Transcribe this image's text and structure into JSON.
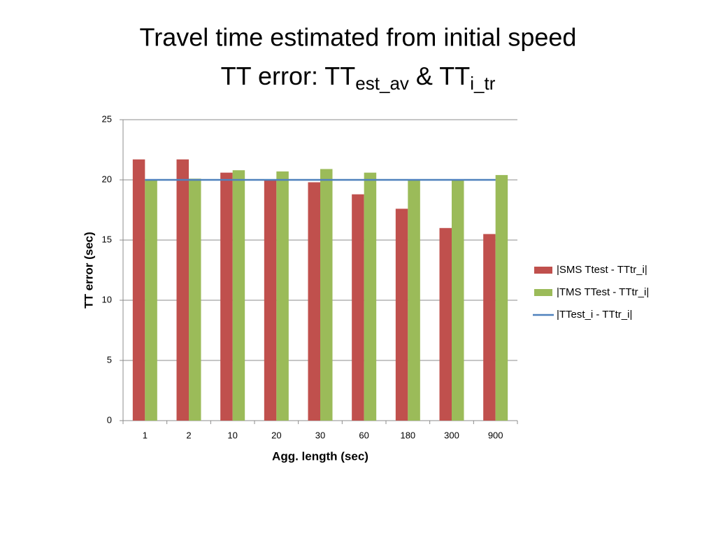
{
  "chart_data": {
    "type": "bar",
    "title": {
      "line1": "Travel time estimated from initial speed",
      "line2": [
        "TT error: TT",
        "est_av",
        " & TT",
        "i_tr"
      ]
    },
    "x_label": "Agg. length (sec)",
    "y_label": "TT error (sec)",
    "categories": [
      "1",
      "2",
      "10",
      "20",
      "30",
      "60",
      "180",
      "300",
      "900"
    ],
    "series": [
      {
        "name": "|SMS Ttest - TTtr_i|",
        "type": "bar",
        "color": "#c0504d",
        "values": [
          21.7,
          21.7,
          20.6,
          20.0,
          19.8,
          18.8,
          17.6,
          16.0,
          15.5
        ]
      },
      {
        "name": "|TMS TTest - TTtr_i|",
        "type": "bar",
        "color": "#9bbb59",
        "values": [
          20.0,
          20.1,
          20.8,
          20.7,
          20.9,
          20.6,
          20.0,
          20.0,
          20.4
        ]
      },
      {
        "name": "|TTest_i - TTtr_i|",
        "type": "line",
        "color": "#4f81bd",
        "values": [
          20.0,
          20.0,
          20.0,
          20.0,
          20.0,
          20.0,
          20.0,
          20.0,
          20.0
        ]
      }
    ],
    "ylim": [
      0,
      25
    ],
    "yticks": [
      0,
      5,
      10,
      15,
      20,
      25
    ],
    "grid": true,
    "legend": "right"
  }
}
